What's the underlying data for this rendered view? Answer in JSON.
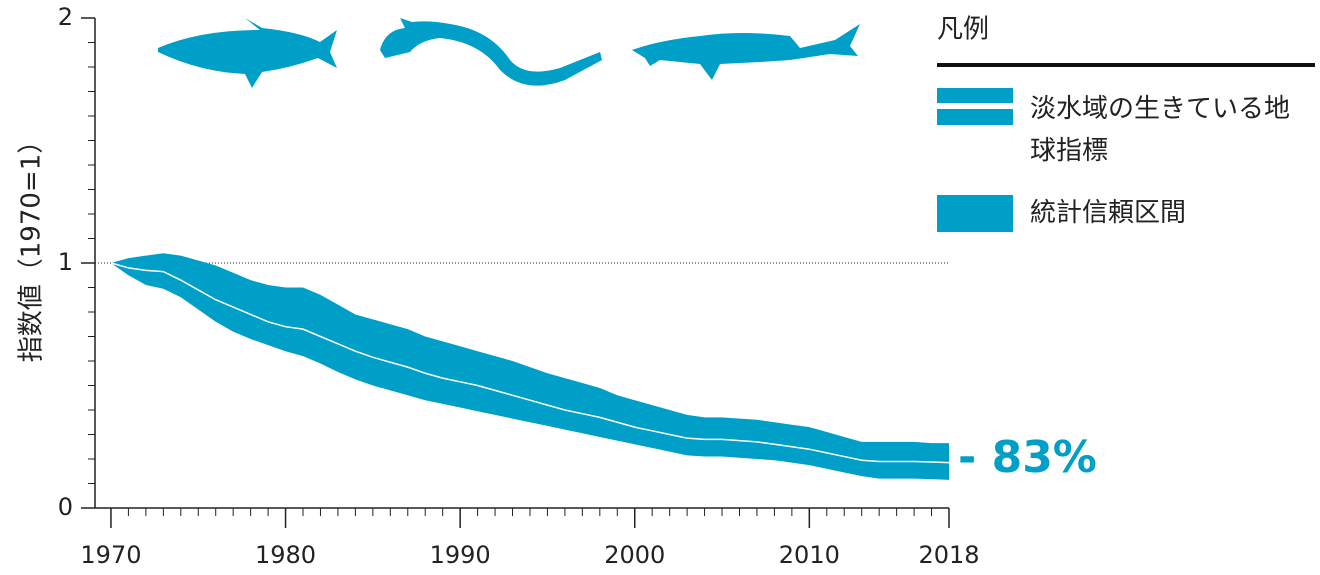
{
  "chart_data": {
    "type": "band-line",
    "y_label": "指数値（1970=1）",
    "legend_title": "凡例",
    "annotation": "- 83%",
    "x": [
      1970,
      1971,
      1972,
      1973,
      1974,
      1975,
      1976,
      1977,
      1978,
      1979,
      1980,
      1981,
      1982,
      1983,
      1984,
      1985,
      1986,
      1987,
      1988,
      1989,
      1990,
      1991,
      1992,
      1993,
      1994,
      1995,
      1996,
      1997,
      1998,
      1999,
      2000,
      2001,
      2002,
      2003,
      2004,
      2005,
      2006,
      2007,
      2008,
      2009,
      2010,
      2011,
      2012,
      2013,
      2014,
      2015,
      2016,
      2017,
      2018
    ],
    "series": [
      {
        "name": "淡水域の生きている地球指標",
        "color": "#ffffff",
        "values": [
          1.0,
          0.98,
          0.97,
          0.965,
          0.93,
          0.89,
          0.85,
          0.82,
          0.79,
          0.76,
          0.74,
          0.73,
          0.7,
          0.67,
          0.64,
          0.615,
          0.595,
          0.575,
          0.55,
          0.53,
          0.515,
          0.5,
          0.48,
          0.46,
          0.44,
          0.42,
          0.4,
          0.385,
          0.37,
          0.35,
          0.33,
          0.315,
          0.3,
          0.285,
          0.28,
          0.28,
          0.275,
          0.27,
          0.26,
          0.25,
          0.24,
          0.225,
          0.21,
          0.195,
          0.19,
          0.19,
          0.19,
          0.188,
          0.185
        ]
      }
    ],
    "band": {
      "name": "統計信頼区間",
      "color": "#009fc8",
      "upper": [
        1.0,
        1.02,
        1.03,
        1.04,
        1.03,
        1.01,
        0.99,
        0.96,
        0.93,
        0.91,
        0.9,
        0.9,
        0.87,
        0.83,
        0.79,
        0.77,
        0.75,
        0.73,
        0.7,
        0.68,
        0.66,
        0.64,
        0.62,
        0.6,
        0.575,
        0.55,
        0.53,
        0.51,
        0.49,
        0.46,
        0.44,
        0.42,
        0.4,
        0.38,
        0.37,
        0.37,
        0.365,
        0.36,
        0.35,
        0.34,
        0.33,
        0.31,
        0.29,
        0.27,
        0.27,
        0.27,
        0.27,
        0.265,
        0.265
      ],
      "lower": [
        1.0,
        0.95,
        0.91,
        0.895,
        0.86,
        0.81,
        0.76,
        0.72,
        0.69,
        0.665,
        0.64,
        0.62,
        0.59,
        0.555,
        0.525,
        0.5,
        0.48,
        0.46,
        0.44,
        0.425,
        0.41,
        0.395,
        0.38,
        0.365,
        0.35,
        0.335,
        0.32,
        0.305,
        0.29,
        0.275,
        0.26,
        0.245,
        0.23,
        0.215,
        0.21,
        0.21,
        0.205,
        0.2,
        0.195,
        0.185,
        0.175,
        0.16,
        0.145,
        0.13,
        0.12,
        0.12,
        0.12,
        0.118,
        0.115
      ]
    },
    "xlim": [
      1969,
      2018
    ],
    "xticks": [
      1970,
      1980,
      1990,
      2000,
      2010,
      2018
    ],
    "ylim": [
      0,
      2
    ],
    "yticks": [
      0,
      1,
      2
    ],
    "yminorticks": [
      0.1,
      0.2,
      0.3,
      0.4,
      0.5,
      0.6,
      0.7,
      0.8,
      0.9,
      1.1,
      1.2,
      1.3,
      1.4,
      1.5,
      1.6,
      1.7,
      1.8,
      1.9
    ],
    "reference_line": 1
  }
}
